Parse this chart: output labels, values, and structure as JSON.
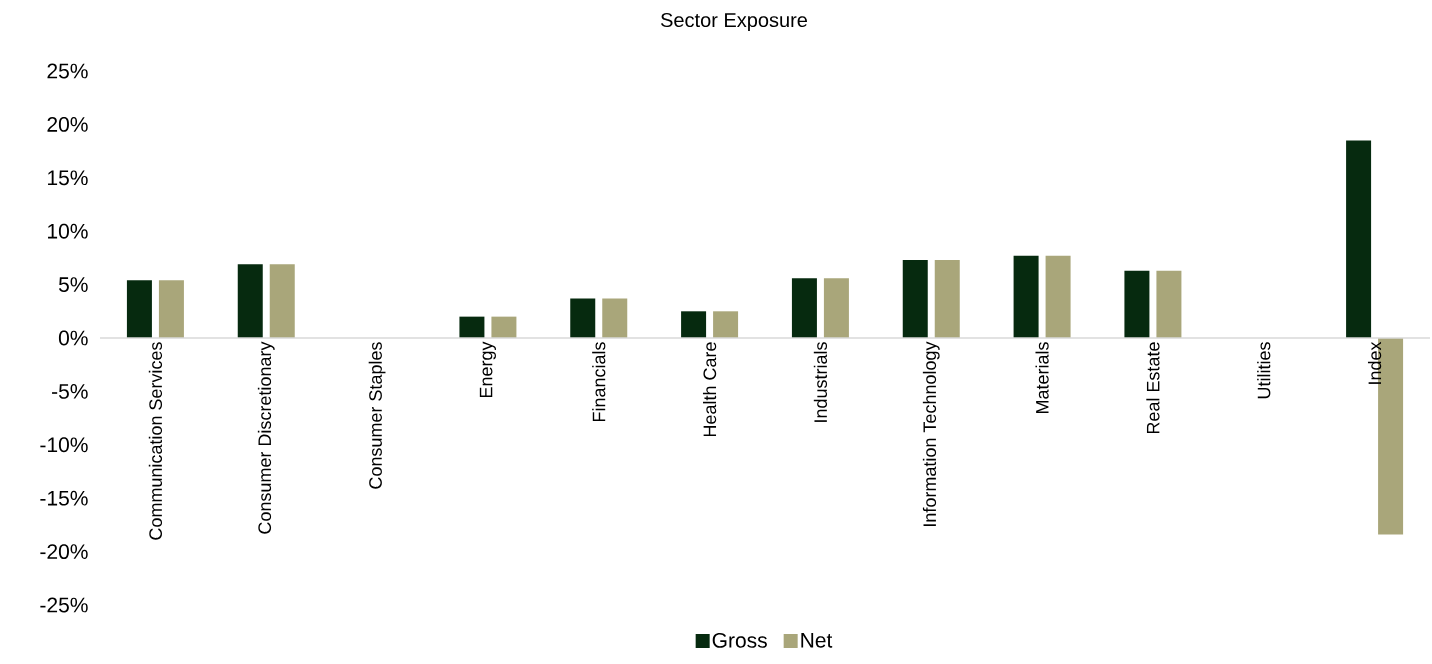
{
  "chart_data": {
    "type": "bar",
    "title": "Sector Exposure",
    "categories": [
      "Communication Services",
      "Consumer Discretionary",
      "Consumer Staples",
      "Energy",
      "Financials",
      "Health Care",
      "Industrials",
      "Information Technology",
      "Materials",
      "Real Estate",
      "Utilities",
      "Index"
    ],
    "series": [
      {
        "name": "Gross",
        "color": "#062a0f",
        "values": [
          5.4,
          6.9,
          0,
          2.0,
          3.7,
          2.5,
          5.6,
          7.3,
          7.7,
          6.3,
          0,
          18.5
        ]
      },
      {
        "name": "Net",
        "color": "#a9a67a",
        "values": [
          5.4,
          6.9,
          0,
          2.0,
          3.7,
          2.5,
          5.6,
          7.3,
          7.7,
          6.3,
          0,
          -18.4
        ]
      }
    ],
    "ylim": [
      -25,
      25
    ],
    "yticks": [
      {
        "value": -25,
        "label": "-25%"
      },
      {
        "value": -20,
        "label": "-20%"
      },
      {
        "value": -15,
        "label": "-15%"
      },
      {
        "value": -10,
        "label": "-10%"
      },
      {
        "value": -5,
        "label": "-5%"
      },
      {
        "value": 0,
        "label": "0%"
      },
      {
        "value": 5,
        "label": "5%"
      },
      {
        "value": 10,
        "label": "10%"
      },
      {
        "value": 15,
        "label": "15%"
      },
      {
        "value": 20,
        "label": "20%"
      },
      {
        "value": 25,
        "label": "25%"
      }
    ],
    "grid": false,
    "legend": "bottom"
  }
}
